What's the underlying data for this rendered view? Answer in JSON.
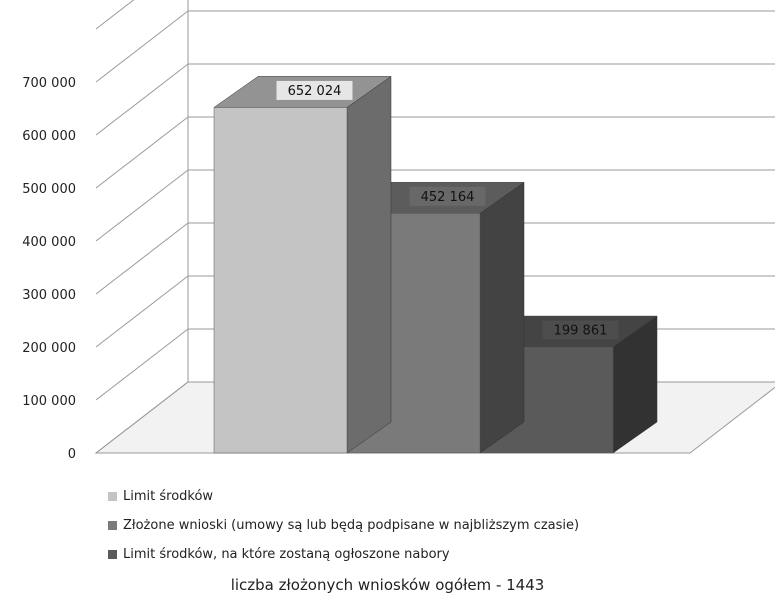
{
  "chart_data": {
    "type": "bar",
    "categories": [
      "Limit środków",
      "Złożone wnioski (umowy są lub będą podpisane w najbliższym czasie)",
      "Limit środków, na które zostaną ogłoszone nabory"
    ],
    "values": [
      652024,
      452164,
      199861
    ],
    "data_labels": [
      "652 024",
      "452 164",
      "199 861"
    ],
    "ylim": [
      0,
      800000
    ],
    "y_ticks": [
      0,
      100000,
      200000,
      300000,
      400000,
      500000,
      600000,
      700000
    ],
    "y_tick_labels": [
      "0",
      "100 000",
      "200 000",
      "300 000",
      "400 000",
      "500 000",
      "600 000",
      "700 000"
    ],
    "grid": true,
    "three_d": true,
    "legend_position": "bottom",
    "colors": [
      "#c4c4c4",
      "#7a7a7a",
      "#5a5a5a"
    ]
  },
  "legend": {
    "items": [
      "Limit środków",
      "Złożone wnioski (umowy są lub będą podpisane w najbliższym czasie)",
      "Limit środków, na które zostaną ogłoszone nabory"
    ]
  },
  "footer": {
    "text": "liczba złożonych wniosków ogółem - 1443"
  }
}
